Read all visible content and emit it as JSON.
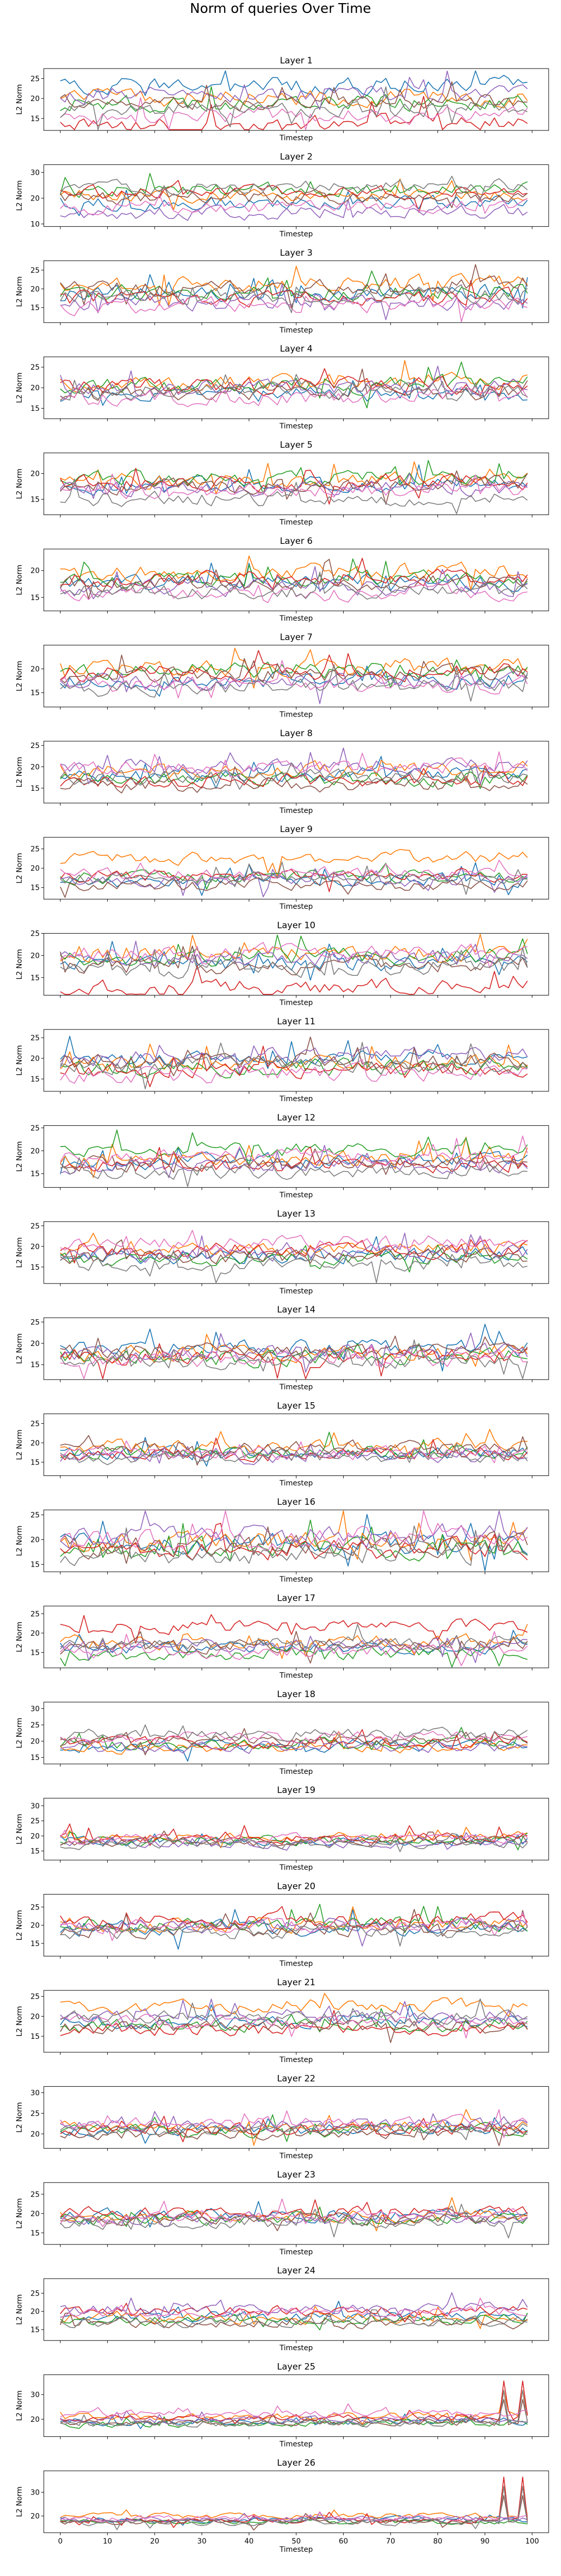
{
  "title": "Norm of queries Over Time",
  "colors": [
    "#1f77b4",
    "#ff7f0e",
    "#2ca02c",
    "#d62728",
    "#9467bd",
    "#8c564b",
    "#e377c2",
    "#7f7f7f"
  ],
  "chart_data": {
    "type": "line",
    "xlabel": "Timestep",
    "ylabel": "L2 Norm",
    "x_ticks": [
      0,
      10,
      20,
      30,
      40,
      50,
      60,
      70,
      80,
      90,
      100
    ],
    "x_range": [
      -3.5,
      103.5
    ],
    "timesteps": 100,
    "series_count": 8,
    "layers": [
      {
        "title": "Layer 1",
        "y_ticks": [
          15,
          20,
          25
        ],
        "ylim": [
          12,
          27.5
        ],
        "means": [
          23.0,
          20.0,
          18.5,
          13.5,
          21.0,
          19.0,
          15.5,
          17.0
        ],
        "noise": 1.6
      },
      {
        "title": "Layer 2",
        "y_ticks": [
          10,
          20,
          30
        ],
        "ylim": [
          9,
          33
        ],
        "means": [
          18.0,
          21.0,
          23.0,
          22.0,
          14.0,
          20.0,
          16.0,
          24.0
        ],
        "noise": 2.0
      },
      {
        "title": "Layer 3",
        "y_ticks": [
          15,
          20,
          25
        ],
        "ylim": [
          11,
          27.5
        ],
        "means": [
          18.5,
          21.0,
          19.0,
          17.5,
          16.0,
          20.0,
          15.5,
          18.0
        ],
        "noise": 1.6
      },
      {
        "title": "Layer 4",
        "y_ticks": [
          15,
          20,
          25
        ],
        "ylim": [
          12.5,
          27.5
        ],
        "means": [
          18.0,
          21.5,
          20.5,
          20.0,
          19.5,
          18.5,
          17.5,
          19.0
        ],
        "noise": 1.5
      },
      {
        "title": "Layer 5",
        "y_ticks": [
          15,
          20
        ],
        "ylim": [
          12,
          24
        ],
        "means": [
          17.5,
          18.5,
          19.0,
          18.0,
          17.0,
          17.5,
          16.5,
          15.0
        ],
        "noise": 1.1
      },
      {
        "title": "Layer 6",
        "y_ticks": [
          15,
          20
        ],
        "ylim": [
          12.5,
          24
        ],
        "means": [
          17.5,
          19.5,
          18.0,
          18.5,
          16.5,
          17.5,
          15.5,
          16.0
        ],
        "noise": 1.1
      },
      {
        "title": "Layer 7",
        "y_ticks": [
          15,
          20
        ],
        "ylim": [
          12,
          25
        ],
        "means": [
          17.5,
          20.0,
          19.5,
          19.0,
          17.0,
          18.5,
          16.5,
          16.0
        ],
        "noise": 1.3
      },
      {
        "title": "Layer 8",
        "y_ticks": [
          15,
          20,
          25
        ],
        "ylim": [
          11.5,
          26
        ],
        "means": [
          18.0,
          19.0,
          17.0,
          16.5,
          20.0,
          15.5,
          19.5,
          17.5
        ],
        "noise": 1.3
      },
      {
        "title": "Layer 9",
        "y_ticks": [
          15,
          20,
          25
        ],
        "ylim": [
          12,
          28
        ],
        "means": [
          16.5,
          22.5,
          17.5,
          18.0,
          16.5,
          15.5,
          18.5,
          17.0
        ],
        "noise": 1.2
      },
      {
        "title": "Layer 10",
        "y_ticks": [
          15,
          20,
          25
        ],
        "ylim": [
          11,
          25
        ],
        "means": [
          18.0,
          20.0,
          19.5,
          12.5,
          19.0,
          17.5,
          20.5,
          17.0
        ],
        "noise": 1.4
      },
      {
        "title": "Layer 11",
        "y_ticks": [
          15,
          20,
          25
        ],
        "ylim": [
          12,
          27
        ],
        "means": [
          19.5,
          18.5,
          17.5,
          17.0,
          20.0,
          19.0,
          16.0,
          18.0
        ],
        "noise": 1.5
      },
      {
        "title": "Layer 12",
        "y_ticks": [
          15,
          20,
          25
        ],
        "ylim": [
          12,
          25.5
        ],
        "means": [
          17.5,
          18.0,
          20.0,
          16.5,
          16.5,
          17.0,
          18.5,
          15.5
        ],
        "noise": 1.2
      },
      {
        "title": "Layer 13",
        "y_ticks": [
          15,
          20,
          25
        ],
        "ylim": [
          11,
          26
        ],
        "means": [
          17.5,
          19.0,
          16.5,
          19.0,
          18.0,
          17.0,
          20.5,
          15.5
        ],
        "noise": 1.4
      },
      {
        "title": "Layer 14",
        "y_ticks": [
          15,
          20,
          25
        ],
        "ylim": [
          11.5,
          26
        ],
        "means": [
          18.5,
          17.5,
          16.5,
          16.5,
          17.5,
          18.0,
          16.0,
          15.5
        ],
        "noise": 1.5
      },
      {
        "title": "Layer 15",
        "y_ticks": [
          15,
          20,
          25
        ],
        "ylim": [
          11.5,
          27.5
        ],
        "means": [
          17.0,
          19.0,
          17.5,
          16.5,
          16.0,
          18.5,
          17.0,
          16.0
        ],
        "noise": 1.3
      },
      {
        "title": "Layer 16",
        "y_ticks": [
          15,
          20,
          25
        ],
        "ylim": [
          13.5,
          26
        ],
        "means": [
          19.0,
          19.5,
          18.0,
          17.5,
          20.5,
          18.5,
          20.0,
          17.0
        ],
        "noise": 1.6
      },
      {
        "title": "Layer 17",
        "y_ticks": [
          15,
          20,
          25
        ],
        "ylim": [
          11,
          27
        ],
        "means": [
          16.0,
          17.5,
          14.5,
          21.5,
          17.0,
          16.5,
          15.0,
          17.0
        ],
        "noise": 1.3
      },
      {
        "title": "Layer 18",
        "y_ticks": [
          15,
          20,
          25,
          30
        ],
        "ylim": [
          13,
          32
        ],
        "means": [
          18.5,
          18.0,
          19.0,
          19.5,
          18.0,
          20.0,
          21.0,
          22.0
        ],
        "noise": 1.3
      },
      {
        "title": "Layer 19",
        "y_ticks": [
          15,
          20,
          25,
          30
        ],
        "ylim": [
          12,
          32.5
        ],
        "means": [
          18.0,
          19.5,
          18.5,
          19.0,
          17.0,
          18.0,
          19.0,
          17.0
        ],
        "noise": 1.2
      },
      {
        "title": "Layer 20",
        "y_ticks": [
          15,
          20,
          25
        ],
        "ylim": [
          11.5,
          28.5
        ],
        "means": [
          19.0,
          20.0,
          20.0,
          21.0,
          19.5,
          18.5,
          19.5,
          18.0
        ],
        "noise": 1.5
      },
      {
        "title": "Layer 21",
        "y_ticks": [
          15,
          20,
          25
        ],
        "ylim": [
          11,
          26.5
        ],
        "means": [
          18.5,
          22.5,
          17.5,
          16.5,
          20.0,
          17.0,
          18.5,
          19.5
        ],
        "noise": 1.3
      },
      {
        "title": "Layer 22",
        "y_ticks": [
          20,
          25,
          30
        ],
        "ylim": [
          16.5,
          31.5
        ],
        "means": [
          21.0,
          21.5,
          20.5,
          21.0,
          22.0,
          20.0,
          22.5,
          21.0
        ],
        "noise": 1.1
      },
      {
        "title": "Layer 23",
        "y_ticks": [
          15,
          20,
          25
        ],
        "ylim": [
          12,
          28
        ],
        "means": [
          19.5,
          19.0,
          18.5,
          20.0,
          18.0,
          18.5,
          19.0,
          17.5
        ],
        "noise": 1.2
      },
      {
        "title": "Layer 24",
        "y_ticks": [
          15,
          20,
          25
        ],
        "ylim": [
          12,
          29
        ],
        "means": [
          18.5,
          18.0,
          17.5,
          20.0,
          20.5,
          16.5,
          19.5,
          17.0
        ],
        "noise": 1.1
      },
      {
        "title": "Layer 25",
        "y_ticks": [
          20,
          30
        ],
        "ylim": [
          13,
          38
        ],
        "means": [
          19.0,
          21.0,
          18.0,
          20.5,
          19.5,
          18.5,
          22.0,
          18.0
        ],
        "noise": 1.1
      },
      {
        "title": "Layer 26",
        "y_ticks": [
          20,
          30
        ],
        "ylim": [
          13,
          39
        ],
        "means": [
          18.5,
          20.0,
          17.5,
          18.0,
          18.5,
          17.5,
          19.0,
          17.0
        ],
        "noise": 0.9
      }
    ]
  }
}
